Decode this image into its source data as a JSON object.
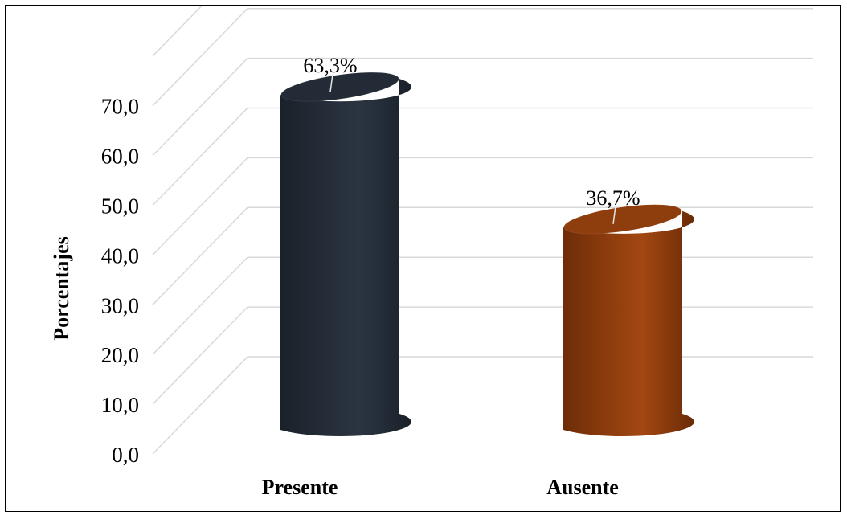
{
  "chart_data": {
    "type": "bar",
    "style": "3d-cylinder",
    "categories": [
      "Presente",
      "Ausente"
    ],
    "values": [
      63.3,
      36.7
    ],
    "data_labels": [
      "63,3%",
      "36,7%"
    ],
    "title": "",
    "xlabel": "",
    "ylabel": "Porcentajes",
    "ylim": [
      0,
      70
    ],
    "yticks": [
      "0,0",
      "10,0",
      "20,0",
      "30,0",
      "40,0",
      "50,0",
      "60,0",
      "70,0"
    ],
    "grid": true,
    "legend": "none",
    "colors": [
      "#232b36",
      "#8e3d0d"
    ]
  }
}
